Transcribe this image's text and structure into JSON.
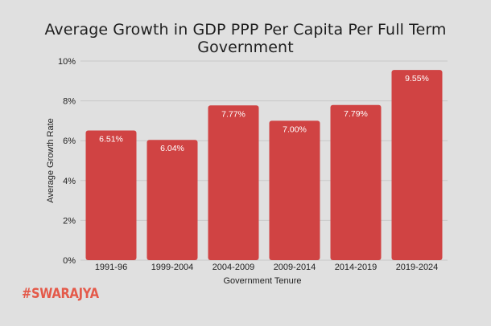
{
  "colors": {
    "background": "#e0e0e0",
    "bar": "#d04343",
    "bar_label": "#ffffff",
    "grid": "#c8c8c8",
    "text": "#1f1f1f",
    "brand": "#e45a4a"
  },
  "brand": {
    "logo": "#SWARAJYA"
  },
  "chart_data": {
    "type": "bar",
    "title": "Average Growth in GDP PPP Per Capita Per Full Term Government",
    "xlabel": "Government Tenure",
    "ylabel": "Average Growth Rate",
    "categories": [
      "1991-96",
      "1999-2004",
      "2004-2009",
      "2009-2014",
      "2014-2019",
      "2019-2024"
    ],
    "values": [
      6.51,
      6.04,
      7.77,
      7.0,
      7.79,
      9.55
    ],
    "data_labels": [
      "6.51%",
      "6.04%",
      "7.77%",
      "7.00%",
      "7.79%",
      "9.55%"
    ],
    "ylim": [
      0,
      10
    ],
    "yticks": [
      0,
      2,
      4,
      6,
      8,
      10
    ],
    "ytick_labels": [
      "0%",
      "2%",
      "4%",
      "6%",
      "8%",
      "10%"
    ],
    "grid": true,
    "legend": false
  }
}
